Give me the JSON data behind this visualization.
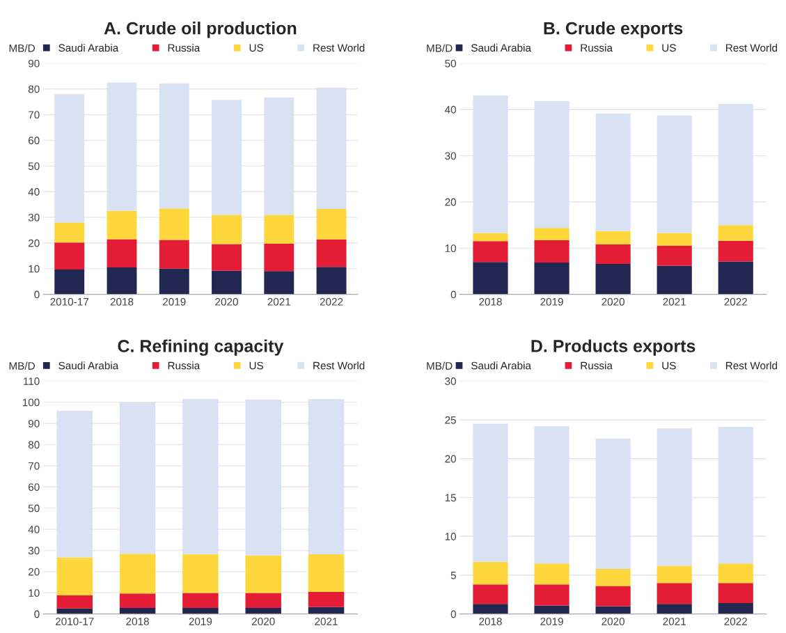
{
  "chart_data": [
    {
      "type": "bar",
      "stacked": true,
      "title": "A. Crude oil production",
      "ylabel": "MB/D",
      "categories": [
        "2010-17",
        "2018",
        "2019",
        "2020",
        "2021",
        "2022"
      ],
      "ylim": [
        0,
        90
      ],
      "yticks": [
        0,
        10,
        20,
        30,
        40,
        50,
        60,
        70,
        80,
        90
      ],
      "grid": "y",
      "legend": "top",
      "series": [
        {
          "name": "Saudi Arabia",
          "color": "#222751",
          "values": [
            9.7,
            10.5,
            10.0,
            9.2,
            9.1,
            10.7
          ]
        },
        {
          "name": "Russia",
          "color": "#e41c36",
          "values": [
            10.5,
            11.0,
            11.2,
            10.4,
            10.6,
            10.7
          ]
        },
        {
          "name": "US",
          "color": "#fdd73c",
          "values": [
            7.8,
            11.0,
            12.3,
            11.4,
            11.3,
            11.9
          ]
        },
        {
          "name": "Rest World",
          "color": "#d9e2f3",
          "values": [
            50.0,
            50.0,
            48.7,
            44.7,
            45.7,
            47.2
          ]
        }
      ]
    },
    {
      "type": "bar",
      "stacked": true,
      "title": "B. Crude exports",
      "ylabel": "MB/D",
      "categories": [
        "2018",
        "2019",
        "2020",
        "2021",
        "2022"
      ],
      "ylim": [
        0,
        50
      ],
      "yticks": [
        0,
        10,
        20,
        30,
        40,
        50
      ],
      "grid": "y",
      "legend": "top",
      "series": [
        {
          "name": "Saudi Arabia",
          "color": "#222751",
          "values": [
            7.0,
            6.9,
            6.6,
            6.2,
            7.1
          ]
        },
        {
          "name": "Russia",
          "color": "#e41c36",
          "values": [
            4.5,
            4.8,
            4.2,
            4.3,
            4.5
          ]
        },
        {
          "name": "US",
          "color": "#fdd73c",
          "values": [
            1.8,
            2.7,
            2.9,
            2.8,
            3.4
          ]
        },
        {
          "name": "Rest World",
          "color": "#d9e2f3",
          "values": [
            29.7,
            27.4,
            25.4,
            25.4,
            26.2
          ]
        }
      ]
    },
    {
      "type": "bar",
      "stacked": true,
      "title": "C. Refining capacity",
      "ylabel": "MB/D",
      "categories": [
        "2010-17",
        "2018",
        "2019",
        "2020",
        "2021"
      ],
      "ylim": [
        0,
        110
      ],
      "yticks": [
        0,
        10,
        20,
        30,
        40,
        50,
        60,
        70,
        80,
        90,
        100,
        110
      ],
      "grid": "y",
      "legend": "top",
      "series": [
        {
          "name": "Saudi Arabia",
          "color": "#222751",
          "values": [
            2.6,
            2.9,
            2.9,
            2.9,
            3.3
          ]
        },
        {
          "name": "Russia",
          "color": "#e41c36",
          "values": [
            6.2,
            6.8,
            7.0,
            7.0,
            7.1
          ]
        },
        {
          "name": "US",
          "color": "#fdd73c",
          "values": [
            17.9,
            18.7,
            18.4,
            17.8,
            17.8
          ]
        },
        {
          "name": "Rest World",
          "color": "#d9e2f3",
          "values": [
            69.2,
            71.5,
            73.3,
            73.5,
            73.3
          ]
        }
      ]
    },
    {
      "type": "bar",
      "stacked": true,
      "title": "D. Products exports",
      "ylabel": "MB/D",
      "categories": [
        "2018",
        "2019",
        "2020",
        "2021",
        "2022"
      ],
      "ylim": [
        0,
        30
      ],
      "yticks": [
        0,
        5,
        10,
        15,
        20,
        25,
        30
      ],
      "grid": "y",
      "legend": "top",
      "series": [
        {
          "name": "Saudi Arabia",
          "color": "#222751",
          "values": [
            1.3,
            1.1,
            1.0,
            1.3,
            1.4
          ]
        },
        {
          "name": "Russia",
          "color": "#e41c36",
          "values": [
            2.5,
            2.7,
            2.6,
            2.7,
            2.6
          ]
        },
        {
          "name": "US",
          "color": "#fdd73c",
          "values": [
            2.9,
            2.7,
            2.2,
            2.2,
            2.5
          ]
        },
        {
          "name": "Rest World",
          "color": "#d9e2f3",
          "values": [
            17.8,
            17.7,
            16.8,
            17.7,
            17.6
          ]
        }
      ]
    }
  ]
}
